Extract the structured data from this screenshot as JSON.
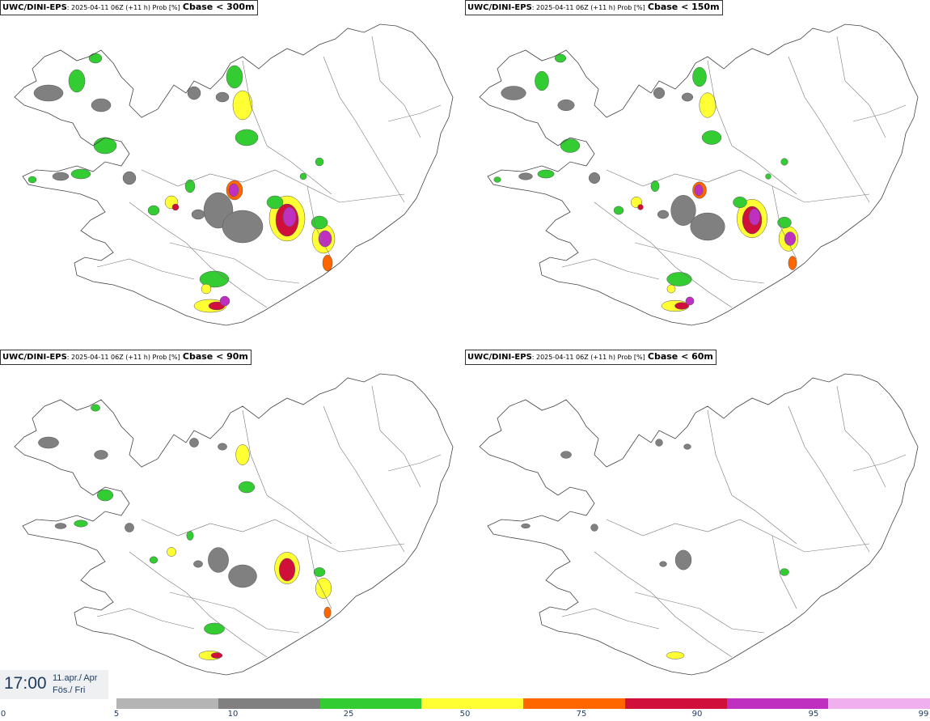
{
  "panels": [
    {
      "model": "UWC/DINI-EPS",
      "meta": ": 2025-04-11 06Z (+11 h) Prob [%]",
      "param": "Cbase < 300m",
      "level": 3
    },
    {
      "model": "UWC/DINI-EPS",
      "meta": ": 2025-04-11 06Z (+11 h) Prob [%]",
      "param": "Cbase < 150m",
      "level": 2
    },
    {
      "model": "UWC/DINI-EPS",
      "meta": ": 2025-04-11 06Z (+11 h) Prob [%]",
      "param": "Cbase < 90m",
      "level": 1
    },
    {
      "model": "UWC/DINI-EPS",
      "meta": ": 2025-04-11 06Z (+11 h) Prob [%]",
      "param": "Cbase < 60m",
      "level": 0
    }
  ],
  "time": {
    "clock": "17:00",
    "date_line": "11.apr./ Apr",
    "day_line": "Fös./ Fri"
  },
  "legend": {
    "ticks": [
      "0",
      "5",
      "10",
      "25",
      "50",
      "75",
      "90",
      "95",
      "99"
    ],
    "colors": [
      "#b4b4b4",
      "#808080",
      "#33cc33",
      "#ffff33",
      "#ff6600",
      "#d0103a",
      "#c030c0",
      "#f0b0f0"
    ]
  }
}
